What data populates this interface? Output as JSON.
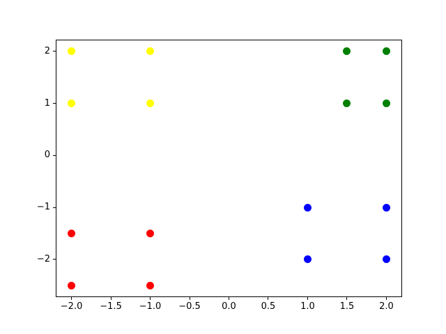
{
  "figure": {
    "background": "#ffffff",
    "axes_edge_color": "#000000",
    "tick_color": "#000000",
    "tick_label_color": "#000000"
  },
  "chart_data": {
    "type": "scatter",
    "title": "",
    "xlabel": "",
    "ylabel": "",
    "grid": false,
    "legend": null,
    "xlim": [
      -2.2,
      2.2
    ],
    "ylim": [
      -2.725,
      2.225
    ],
    "xticks": [
      -2.0,
      -1.5,
      -1.0,
      -0.5,
      0.0,
      0.5,
      1.0,
      1.5,
      2.0
    ],
    "xtick_labels": [
      "−2.0",
      "−1.5",
      "−1.0",
      "−0.5",
      "0.0",
      "0.5",
      "1.0",
      "1.5",
      "2.0"
    ],
    "yticks": [
      -2,
      -1,
      0,
      1,
      2
    ],
    "ytick_labels": [
      "−2",
      "−1",
      "0",
      "1",
      "2"
    ],
    "marker": "circle",
    "marker_size_px": 11,
    "series": [
      {
        "name": "yellow-cluster",
        "color": "#ffff00",
        "points": [
          [
            -2,
            2
          ],
          [
            -1,
            2
          ],
          [
            -2,
            1
          ],
          [
            -1,
            1
          ]
        ]
      },
      {
        "name": "green-cluster",
        "color": "#008000",
        "points": [
          [
            1.5,
            2
          ],
          [
            2,
            2
          ],
          [
            1.5,
            1
          ],
          [
            2,
            1
          ]
        ]
      },
      {
        "name": "red-cluster",
        "color": "#ff0000",
        "points": [
          [
            -2,
            -1.5
          ],
          [
            -1,
            -1.5
          ],
          [
            -2,
            -2.5
          ],
          [
            -1,
            -2.5
          ]
        ]
      },
      {
        "name": "blue-cluster",
        "color": "#0000ff",
        "points": [
          [
            1,
            -1
          ],
          [
            2,
            -1
          ],
          [
            1,
            -2
          ],
          [
            2,
            -2
          ]
        ]
      }
    ]
  }
}
